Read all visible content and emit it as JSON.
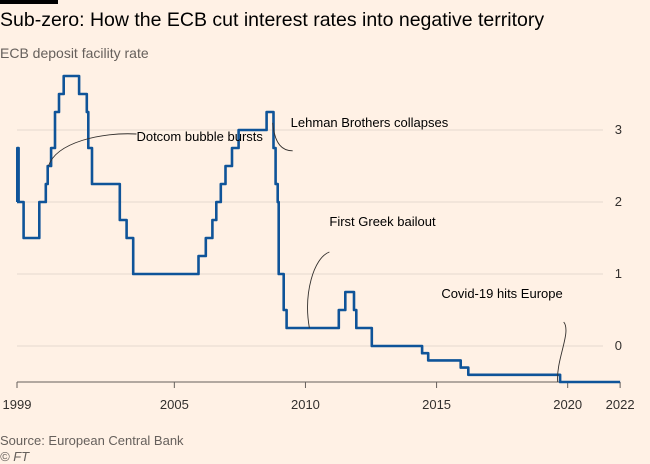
{
  "header": {
    "title": "Sub-zero: How the ECB cut interest rates into negative territory",
    "subtitle": "ECB deposit facility rate"
  },
  "footer": {
    "source": "Source: European Central Bank",
    "credit": "© FT"
  },
  "colors": {
    "background": "#fff1e5",
    "line": "#0f5499",
    "grid": "#e6d9ce",
    "axis": "#66605c",
    "text": "#33302e"
  },
  "chart_data": {
    "type": "line",
    "title": "Sub-zero: How the ECB cut interest rates into negative territory",
    "subtitle": "ECB deposit facility rate",
    "xlabel": "",
    "ylabel": "",
    "xlim": [
      1999,
      2022.3
    ],
    "ylim": [
      -0.5,
      3.75
    ],
    "x_ticks": [
      1999,
      2005,
      2010,
      2015,
      2020,
      2022
    ],
    "x_tick_labels": [
      "1999",
      "2005",
      "2010",
      "2015",
      "2020",
      "2022"
    ],
    "y_ticks": [
      0,
      1,
      2,
      3
    ],
    "y_tick_labels": [
      "0",
      "1",
      "2",
      "3"
    ],
    "grid": true,
    "series": [
      {
        "values": [
          [
            1999.0,
            2.0
          ],
          [
            1999.01,
            2.75
          ],
          [
            1999.06,
            2.0
          ],
          [
            1999.25,
            1.5
          ],
          [
            1999.85,
            2.0
          ],
          [
            2000.1,
            2.25
          ],
          [
            2000.17,
            2.5
          ],
          [
            2000.3,
            2.75
          ],
          [
            2000.45,
            3.25
          ],
          [
            2000.6,
            3.5
          ],
          [
            2000.78,
            3.75
          ],
          [
            2001.37,
            3.5
          ],
          [
            2001.66,
            3.25
          ],
          [
            2001.72,
            2.75
          ],
          [
            2001.86,
            2.25
          ],
          [
            2002.92,
            1.75
          ],
          [
            2003.18,
            1.5
          ],
          [
            2003.43,
            1.0
          ],
          [
            2005.92,
            1.25
          ],
          [
            2006.2,
            1.5
          ],
          [
            2006.45,
            1.75
          ],
          [
            2006.6,
            2.0
          ],
          [
            2006.77,
            2.25
          ],
          [
            2006.95,
            2.5
          ],
          [
            2007.2,
            2.75
          ],
          [
            2007.45,
            3.0
          ],
          [
            2008.52,
            3.25
          ],
          [
            2008.78,
            2.75
          ],
          [
            2008.86,
            2.25
          ],
          [
            2008.94,
            2.0
          ],
          [
            2008.98,
            1.0
          ],
          [
            2009.17,
            0.5
          ],
          [
            2009.28,
            0.25
          ],
          [
            2011.27,
            0.5
          ],
          [
            2011.52,
            0.75
          ],
          [
            2011.85,
            0.5
          ],
          [
            2011.94,
            0.25
          ],
          [
            2012.53,
            0.0
          ],
          [
            2014.45,
            -0.1
          ],
          [
            2014.68,
            -0.2
          ],
          [
            2015.92,
            -0.3
          ],
          [
            2016.21,
            -0.4
          ],
          [
            2019.71,
            -0.5
          ],
          [
            2022.0,
            -0.5
          ]
        ]
      }
    ],
    "annotations": [
      {
        "label": "Dotcom bubble bursts",
        "at": [
          2000.2,
          2.5
        ]
      },
      {
        "label": "Lehman Brothers collapses",
        "at": [
          2008.75,
          3.1
        ]
      },
      {
        "label": "First Greek bailout",
        "at": [
          2010.15,
          0.25
        ]
      },
      {
        "label": "Covid-19 hits Europe",
        "at": [
          2019.62,
          -0.5
        ]
      }
    ]
  }
}
